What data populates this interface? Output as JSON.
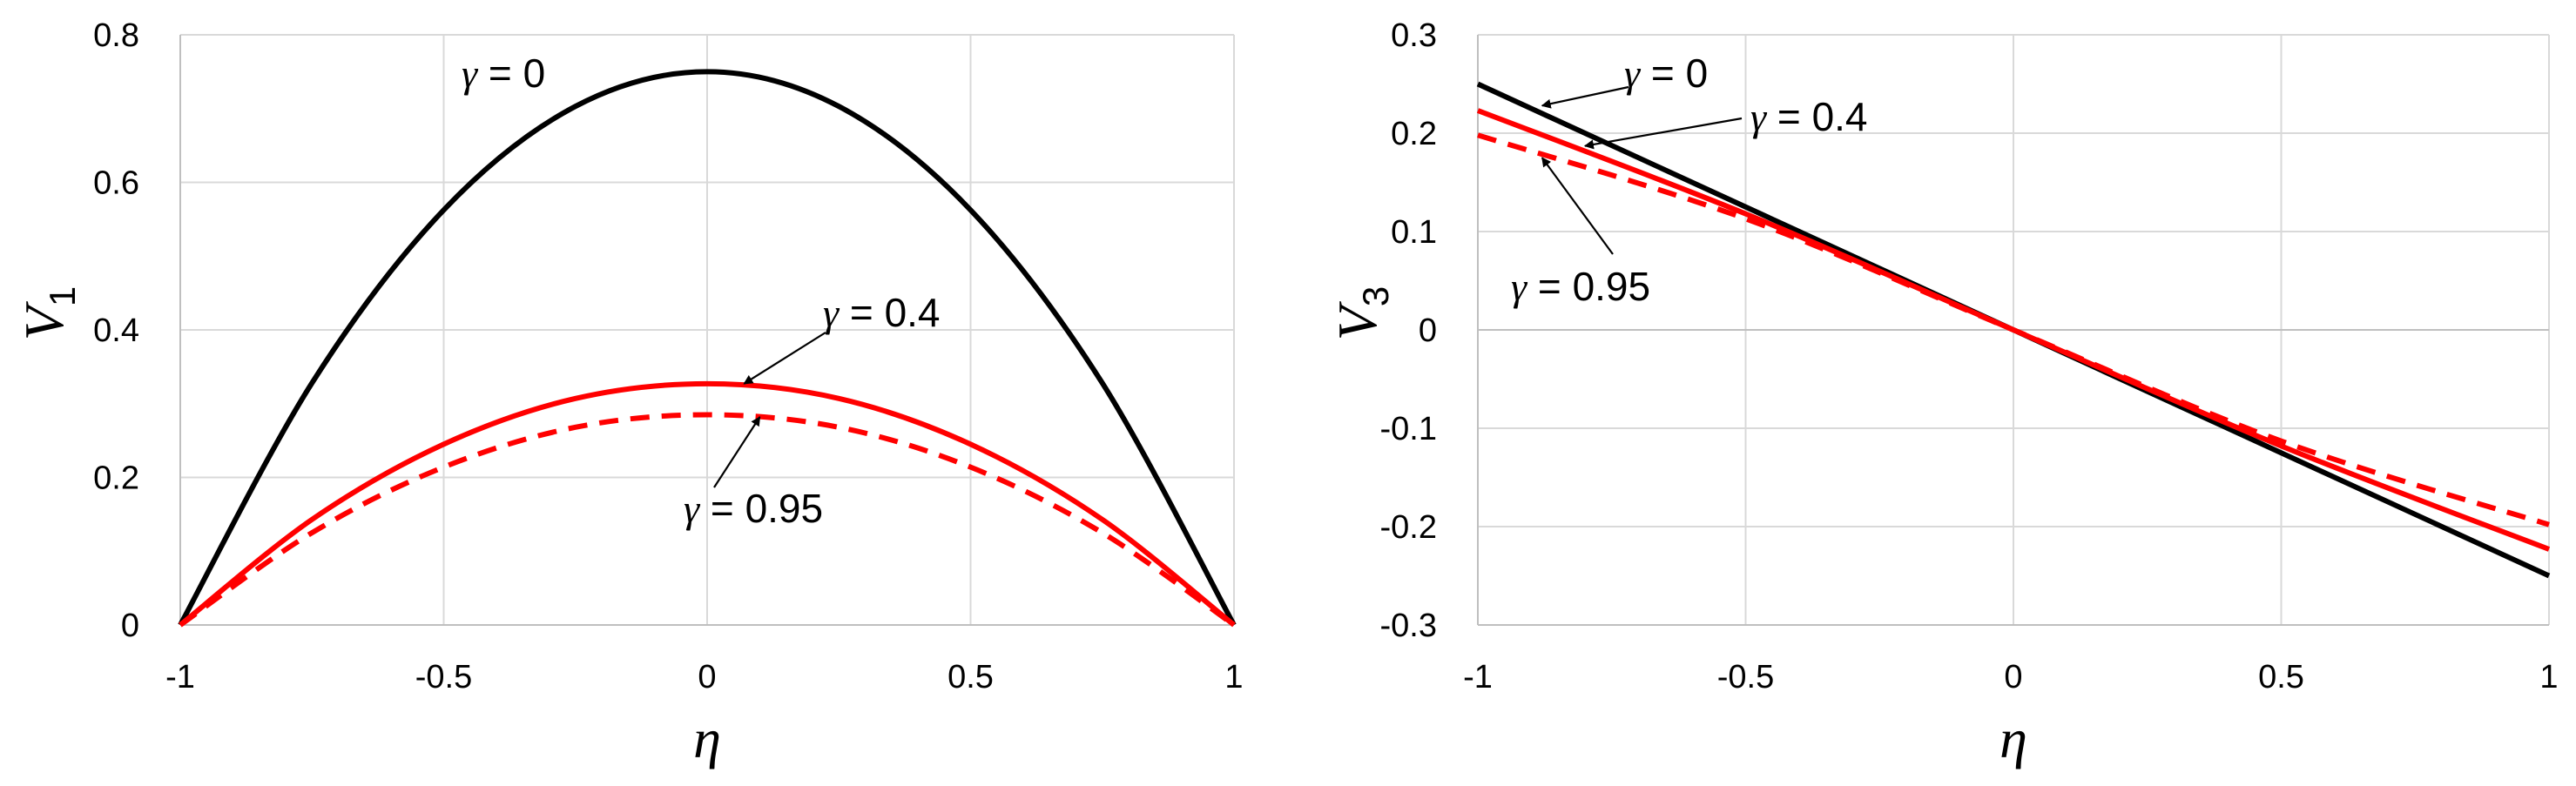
{
  "chart_data": [
    {
      "type": "line",
      "id": "left",
      "xlabel": "η",
      "ylabel": "V",
      "ylabel_subscript": "1",
      "xlim": [
        -1,
        1
      ],
      "ylim": [
        0,
        0.8
      ],
      "xticks": [
        -1,
        -0.5,
        0,
        0.5,
        1
      ],
      "xtick_labels": [
        "-1",
        "-0.5",
        "0",
        "0.5",
        "1"
      ],
      "yticks": [
        0,
        0.2,
        0.4,
        0.6,
        0.8
      ],
      "ytick_labels": [
        "0",
        "0.2",
        "0.4",
        "0.6",
        "0.8"
      ],
      "grid": true,
      "series": [
        {
          "name": "γ = 0",
          "color": "#000000",
          "dash": "solid",
          "x": [
            -1,
            -0.75,
            -0.5,
            -0.25,
            0,
            0.25,
            0.5,
            0.75,
            1
          ],
          "y": [
            0,
            0.328,
            0.5625,
            0.703,
            0.75,
            0.703,
            0.5625,
            0.328,
            0
          ]
        },
        {
          "name": "γ = 0.4",
          "color": "#ff0000",
          "dash": "solid",
          "x": [
            -1,
            -0.75,
            -0.5,
            -0.25,
            0,
            0.25,
            0.5,
            0.75,
            1
          ],
          "y": [
            0,
            0.143,
            0.245,
            0.307,
            0.327,
            0.307,
            0.245,
            0.143,
            0
          ]
        },
        {
          "name": "γ = 0.95",
          "color": "#ff0000",
          "dash": "dashed",
          "x": [
            -1,
            -0.75,
            -0.5,
            -0.25,
            0,
            0.25,
            0.5,
            0.75,
            1
          ],
          "y": [
            0,
            0.125,
            0.214,
            0.268,
            0.285,
            0.268,
            0.214,
            0.125,
            0
          ]
        }
      ],
      "annotations": [
        {
          "symbol": "γ",
          "text": " = 0",
          "for": "γ = 0"
        },
        {
          "symbol": "γ",
          "text": " = 0.4",
          "for": "γ = 0.4",
          "arrow_to": [
            0.07,
            0.327
          ]
        },
        {
          "symbol": "γ",
          "text": " = 0.95",
          "for": "γ = 0.95",
          "arrow_to": [
            0.1,
            0.282
          ]
        }
      ]
    },
    {
      "type": "line",
      "id": "right",
      "xlabel": "η",
      "ylabel": "V",
      "ylabel_subscript": "3",
      "xlim": [
        -1,
        1
      ],
      "ylim": [
        -0.3,
        0.3
      ],
      "xticks": [
        -1,
        -0.5,
        0,
        0.5,
        1
      ],
      "xtick_labels": [
        "-1",
        "-0.5",
        "0",
        "0.5",
        "1"
      ],
      "yticks": [
        -0.3,
        -0.2,
        -0.1,
        0,
        0.1,
        0.2,
        0.3
      ],
      "ytick_labels": [
        "-0.3",
        "-0.2",
        "-0.1",
        "0",
        "0.1",
        "0.2",
        "0.3"
      ],
      "grid": true,
      "series": [
        {
          "name": "γ = 0",
          "color": "#000000",
          "dash": "solid",
          "x": [
            -1,
            1
          ],
          "y": [
            0.25,
            -0.25
          ]
        },
        {
          "name": "γ = 0.4",
          "color": "#ff0000",
          "dash": "solid",
          "x": [
            -1,
            -0.5,
            0,
            0.5,
            1
          ],
          "y": [
            0.223,
            0.118,
            0,
            -0.118,
            -0.223
          ]
        },
        {
          "name": "γ = 0.95",
          "color": "#ff0000",
          "dash": "dashed",
          "x": [
            -1,
            -0.5,
            0,
            0.5,
            1
          ],
          "y": [
            0.198,
            0.113,
            0,
            -0.113,
            -0.198
          ]
        }
      ],
      "annotations": [
        {
          "symbol": "γ",
          "text": " = 0",
          "for": "γ = 0",
          "arrow_to": [
            -0.88,
            0.228
          ]
        },
        {
          "symbol": "γ",
          "text": " = 0.4",
          "for": "γ = 0.4",
          "arrow_to": [
            -0.8,
            0.187
          ]
        },
        {
          "symbol": "γ",
          "text": " = 0.95",
          "for": "γ = 0.95",
          "arrow_to": [
            -0.88,
            0.175
          ]
        }
      ]
    }
  ]
}
